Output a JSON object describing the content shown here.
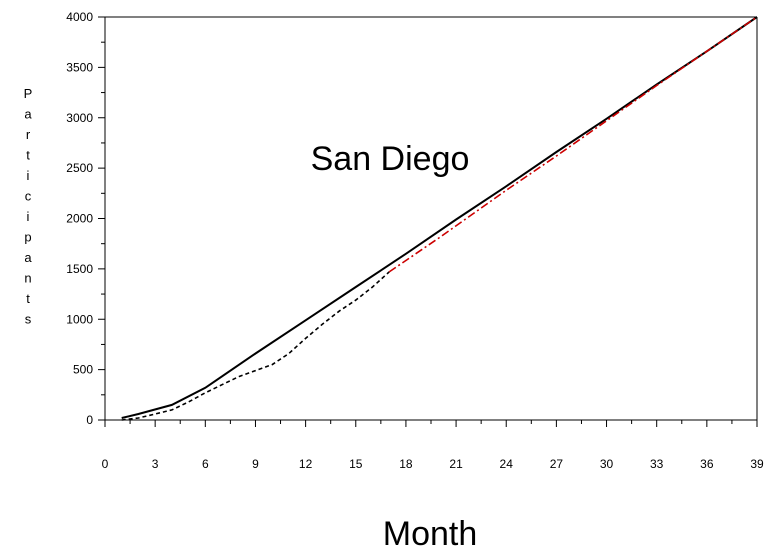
{
  "chart_data": {
    "type": "line",
    "title": "",
    "annotation": "San Diego",
    "xlabel": "Month",
    "ylabel": "Participants",
    "xlim": [
      0,
      39
    ],
    "ylim": [
      0,
      4000
    ],
    "x_ticks": [
      0,
      3,
      6,
      9,
      12,
      15,
      18,
      21,
      24,
      27,
      30,
      33,
      36,
      39
    ],
    "y_ticks": [
      0,
      500,
      1000,
      1500,
      2000,
      2500,
      3000,
      3500,
      4000
    ],
    "grid": false,
    "legend": "none",
    "series": [
      {
        "style": "solid",
        "color": "#000000",
        "points": [
          [
            1,
            20
          ],
          [
            2,
            60
          ],
          [
            4,
            150
          ],
          [
            6,
            320
          ],
          [
            9,
            660
          ],
          [
            12,
            990
          ],
          [
            15,
            1320
          ],
          [
            18,
            1650
          ],
          [
            21,
            1990
          ],
          [
            24,
            2320
          ],
          [
            27,
            2660
          ],
          [
            30,
            2990
          ],
          [
            33,
            3330
          ],
          [
            36,
            3660
          ],
          [
            39,
            4000
          ]
        ]
      },
      {
        "style": "dashed",
        "color": "#000000",
        "points": [
          [
            1,
            0
          ],
          [
            2,
            20
          ],
          [
            3,
            60
          ],
          [
            4,
            100
          ],
          [
            5,
            180
          ],
          [
            6,
            270
          ],
          [
            7,
            350
          ],
          [
            8,
            430
          ],
          [
            9,
            490
          ],
          [
            10,
            550
          ],
          [
            11,
            660
          ],
          [
            12,
            810
          ],
          [
            13,
            950
          ],
          [
            14,
            1080
          ],
          [
            15,
            1190
          ],
          [
            16,
            1320
          ],
          [
            17,
            1470
          ]
        ]
      },
      {
        "style": "dash-dot",
        "color": "#cc0000",
        "points": [
          [
            17,
            1470
          ],
          [
            20,
            1810
          ],
          [
            24,
            2280
          ],
          [
            27,
            2620
          ],
          [
            30,
            2970
          ],
          [
            33,
            3320
          ],
          [
            36,
            3660
          ],
          [
            39,
            4000
          ]
        ]
      }
    ]
  }
}
